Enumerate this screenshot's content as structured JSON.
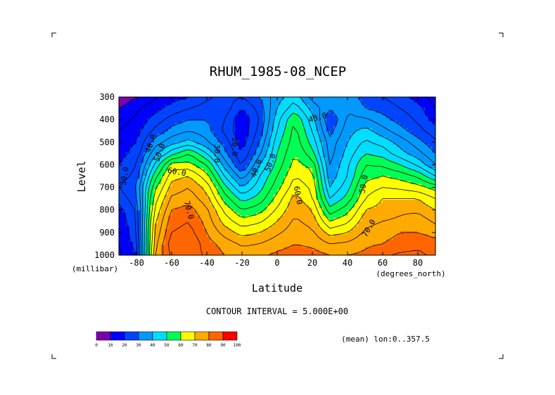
{
  "chart_data": {
    "type": "heatmap",
    "title": "RHUM_1985-08_NCEP",
    "xlabel": "Latitude",
    "ylabel": "Level",
    "x_units": "(degrees_north)",
    "y_units": "(millibar)",
    "subtitle": "CONTOUR INTERVAL = 5.000E+00",
    "annotation": "(mean) lon:0..357.5",
    "x_ticks": [
      -80,
      -60,
      -40,
      -20,
      0,
      20,
      40,
      60,
      80
    ],
    "y_ticks": [
      300,
      400,
      500,
      600,
      700,
      800,
      900,
      1000
    ],
    "xlim": [
      -90,
      90
    ],
    "ylim": [
      1000,
      300
    ],
    "contour_interval": 5,
    "levels_mb": [
      300,
      350,
      400,
      450,
      500,
      550,
      600,
      650,
      700,
      750,
      800,
      850,
      900,
      950,
      1000
    ],
    "latitudes": [
      -90,
      -80,
      -70,
      -60,
      -50,
      -40,
      -30,
      -20,
      -10,
      0,
      10,
      20,
      30,
      40,
      50,
      60,
      70,
      80,
      90
    ],
    "values": [
      [
        5,
        10,
        14,
        18,
        20,
        24,
        27,
        25,
        30,
        38,
        43,
        33,
        30,
        33,
        28,
        25,
        22,
        18,
        12
      ],
      [
        10,
        14,
        18,
        22,
        25,
        27,
        28,
        20,
        27,
        40,
        48,
        38,
        31,
        35,
        30,
        28,
        25,
        22,
        15
      ],
      [
        13,
        16,
        22,
        27,
        30,
        30,
        25,
        16,
        25,
        43,
        55,
        42,
        25,
        36,
        36,
        32,
        28,
        24,
        18
      ],
      [
        15,
        18,
        26,
        32,
        35,
        32,
        24,
        16,
        27,
        45,
        57,
        45,
        28,
        38,
        42,
        37,
        32,
        27,
        22
      ],
      [
        18,
        20,
        32,
        38,
        42,
        36,
        28,
        17,
        30,
        48,
        58,
        48,
        32,
        40,
        46,
        43,
        38,
        32,
        26
      ],
      [
        18,
        22,
        38,
        48,
        55,
        45,
        32,
        20,
        34,
        50,
        60,
        52,
        33,
        42,
        50,
        48,
        42,
        37,
        30
      ],
      [
        20,
        25,
        45,
        62,
        62,
        55,
        38,
        24,
        40,
        52,
        62,
        58,
        35,
        44,
        55,
        54,
        50,
        44,
        35
      ],
      [
        22,
        27,
        52,
        68,
        70,
        62,
        45,
        32,
        45,
        55,
        65,
        62,
        37,
        45,
        58,
        60,
        58,
        54,
        45
      ],
      [
        25,
        30,
        58,
        72,
        75,
        68,
        52,
        40,
        48,
        58,
        68,
        64,
        40,
        48,
        62,
        65,
        64,
        62,
        58
      ],
      [
        22,
        28,
        62,
        76,
        78,
        72,
        58,
        48,
        52,
        62,
        72,
        66,
        45,
        52,
        65,
        70,
        70,
        70,
        65
      ],
      [
        18,
        26,
        65,
        80,
        82,
        76,
        64,
        55,
        58,
        66,
        74,
        70,
        52,
        58,
        70,
        72,
        74,
        74,
        70
      ],
      [
        16,
        25,
        68,
        83,
        85,
        78,
        68,
        62,
        64,
        70,
        76,
        73,
        60,
        64,
        73,
        75,
        76,
        78,
        74
      ],
      [
        15,
        24,
        70,
        85,
        87,
        80,
        73,
        68,
        70,
        74,
        78,
        76,
        68,
        70,
        76,
        78,
        80,
        80,
        78
      ],
      [
        15,
        22,
        72,
        88,
        90,
        82,
        78,
        74,
        75,
        78,
        80,
        79,
        75,
        76,
        79,
        80,
        82,
        84,
        82
      ],
      [
        14,
        20,
        74,
        86,
        88,
        84,
        80,
        78,
        79,
        81,
        82,
        82,
        80,
        80,
        81,
        84,
        86,
        86,
        84
      ]
    ],
    "contour_labels": [
      {
        "text": "30.0",
        "lat": -87,
        "mb": 650,
        "angle": -80
      },
      {
        "text": "40.0",
        "lat": -72,
        "mb": 505,
        "angle": -70
      },
      {
        "text": "50.0",
        "lat": -67,
        "mb": 545,
        "angle": -70
      },
      {
        "text": "60.0",
        "lat": -57,
        "mb": 630,
        "angle": 10
      },
      {
        "text": "70.0",
        "lat": -50,
        "mb": 800,
        "angle": 75
      },
      {
        "text": "30.0",
        "lat": -34,
        "mb": 550,
        "angle": 90
      },
      {
        "text": "20.0",
        "lat": -24,
        "mb": 520,
        "angle": 90
      },
      {
        "text": "40.0",
        "lat": -12,
        "mb": 615,
        "angle": -70
      },
      {
        "text": "50.0",
        "lat": -4,
        "mb": 590,
        "angle": -70
      },
      {
        "text": "60.0",
        "lat": 12,
        "mb": 735,
        "angle": 80
      },
      {
        "text": "40.0",
        "lat": 23,
        "mb": 390,
        "angle": -15
      },
      {
        "text": "50.0",
        "lat": 49,
        "mb": 685,
        "angle": -80
      },
      {
        "text": "70.0",
        "lat": 52,
        "mb": 880,
        "angle": -60
      }
    ],
    "colorbar": {
      "ticks": [
        "0",
        "10",
        "20",
        "30",
        "40",
        "50",
        "60",
        "70",
        "80",
        "90",
        "100"
      ],
      "colors": [
        "#7f00aa",
        "#0000ff",
        "#0044ff",
        "#0099ff",
        "#00ddff",
        "#00ff55",
        "#ffff00",
        "#ffaa00",
        "#ff6600",
        "#ff0000"
      ]
    }
  }
}
